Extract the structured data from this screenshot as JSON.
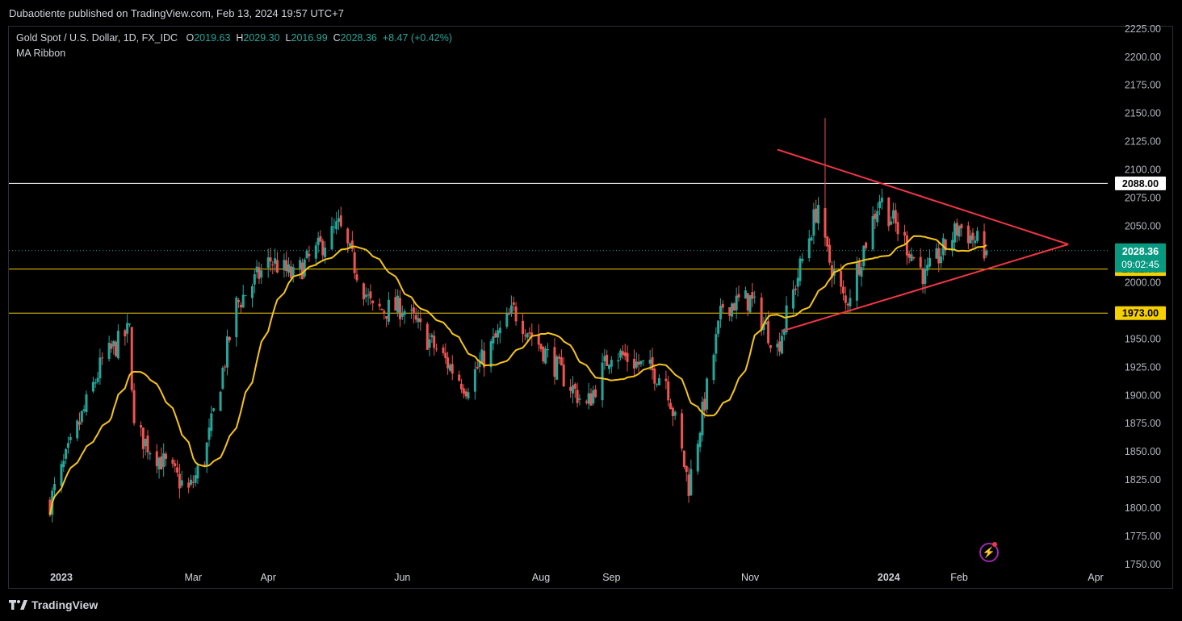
{
  "header": {
    "published": "Dubaotiente published on TradingView.com, Feb 13, 2024 19:57 UTC+7"
  },
  "legend": {
    "symbol": "Gold Spot / U.S. Dollar, 1D, FX_IDC",
    "o_label": "O",
    "o": "2019.63",
    "h_label": "H",
    "h": "2029.30",
    "l_label": "L",
    "l": "2016.99",
    "c_label": "C",
    "c": "2028.36",
    "change": "+8.47 (+0.42%)",
    "indicator": "MA Ribbon"
  },
  "footer": {
    "brand": "TradingView"
  },
  "colors": {
    "up": "#26a69a",
    "down": "#ef5350",
    "ma": "#f5c518",
    "triangle": "#f23645",
    "line_white": "#ffffff",
    "line_yellow": "#f5d000",
    "price_tag": "#089981"
  },
  "icons": {
    "brand_icon": "tradingview-logo-icon",
    "bolt_icon": "lightning-icon"
  },
  "chart_data": {
    "type": "candlestick",
    "title": "Gold Spot / U.S. Dollar, 1D, FX_IDC",
    "y_axis": {
      "range": [
        1730,
        2227
      ],
      "ticks": [
        "1750.00",
        "1775.00",
        "1800.00",
        "1825.00",
        "1850.00",
        "1875.00",
        "1900.00",
        "1925.00",
        "1950.00",
        "1975.00",
        "2000.00",
        "2025.00",
        "2050.00",
        "2075.00",
        "2100.00",
        "2125.00",
        "2150.00",
        "2175.00",
        "2200.00",
        "2225.00"
      ]
    },
    "x_axis": {
      "labels": [
        {
          "text": "2023",
          "date": "2023-01-02"
        },
        {
          "text": "Mar",
          "date": "2023-03-01"
        },
        {
          "text": "Apr",
          "date": "2023-04-03"
        },
        {
          "text": "Jun",
          "date": "2023-06-01"
        },
        {
          "text": "Aug",
          "date": "2023-08-01"
        },
        {
          "text": "Sep",
          "date": "2023-09-01"
        },
        {
          "text": "Nov",
          "date": "2023-11-01"
        },
        {
          "text": "2024",
          "date": "2024-01-01"
        },
        {
          "text": "Feb",
          "date": "2024-02-01"
        },
        {
          "text": "Apr",
          "date": "2024-04-01"
        }
      ]
    },
    "waypoints": [
      {
        "date": "2022-12-28",
        "close": 1805
      },
      {
        "date": "2023-01-20",
        "close": 1930
      },
      {
        "date": "2023-02-01",
        "close": 1958
      },
      {
        "date": "2023-02-03",
        "close": 1870
      },
      {
        "date": "2023-02-27",
        "close": 1815
      },
      {
        "date": "2023-03-06",
        "close": 1845
      },
      {
        "date": "2023-03-20",
        "close": 1980
      },
      {
        "date": "2023-04-04",
        "close": 2020
      },
      {
        "date": "2023-04-14",
        "close": 2005
      },
      {
        "date": "2023-05-04",
        "close": 2050
      },
      {
        "date": "2023-05-19",
        "close": 1975
      },
      {
        "date": "2023-06-01",
        "close": 1978
      },
      {
        "date": "2023-06-29",
        "close": 1908
      },
      {
        "date": "2023-07-20",
        "close": 1975
      },
      {
        "date": "2023-08-21",
        "close": 1890
      },
      {
        "date": "2023-09-01",
        "close": 1940
      },
      {
        "date": "2023-09-25",
        "close": 1915
      },
      {
        "date": "2023-10-05",
        "close": 1820
      },
      {
        "date": "2023-10-20",
        "close": 1980
      },
      {
        "date": "2023-11-01",
        "close": 1985
      },
      {
        "date": "2023-11-13",
        "close": 1942
      },
      {
        "date": "2023-12-01",
        "close": 2070
      },
      {
        "date": "2023-12-04",
        "close": 2030
      },
      {
        "date": "2023-12-13",
        "close": 1980
      },
      {
        "date": "2023-12-28",
        "close": 2075
      },
      {
        "date": "2024-01-17",
        "close": 2005
      },
      {
        "date": "2024-02-01",
        "close": 2050
      },
      {
        "date": "2024-02-13",
        "close": 2028.36
      }
    ],
    "ma_label": "MA Ribbon",
    "levels": [
      {
        "value": 2088.0,
        "label": "2088.00",
        "color": "#ffffff"
      },
      {
        "value": 2012.0,
        "label": "2012.00",
        "color": "#f5d000"
      },
      {
        "value": 1973.0,
        "label": "1973.00",
        "color": "#f5d000"
      }
    ],
    "current_price": {
      "value": 2028.36,
      "label": "2028.36",
      "countdown": "09:02:45"
    },
    "triangle": {
      "upper": [
        {
          "date": "2023-11-13",
          "price": 2118
        },
        {
          "date": "2024-03-20",
          "price": 2034
        }
      ],
      "lower": [
        {
          "date": "2023-11-15",
          "price": 1957
        },
        {
          "date": "2024-03-20",
          "price": 2034
        }
      ]
    }
  }
}
